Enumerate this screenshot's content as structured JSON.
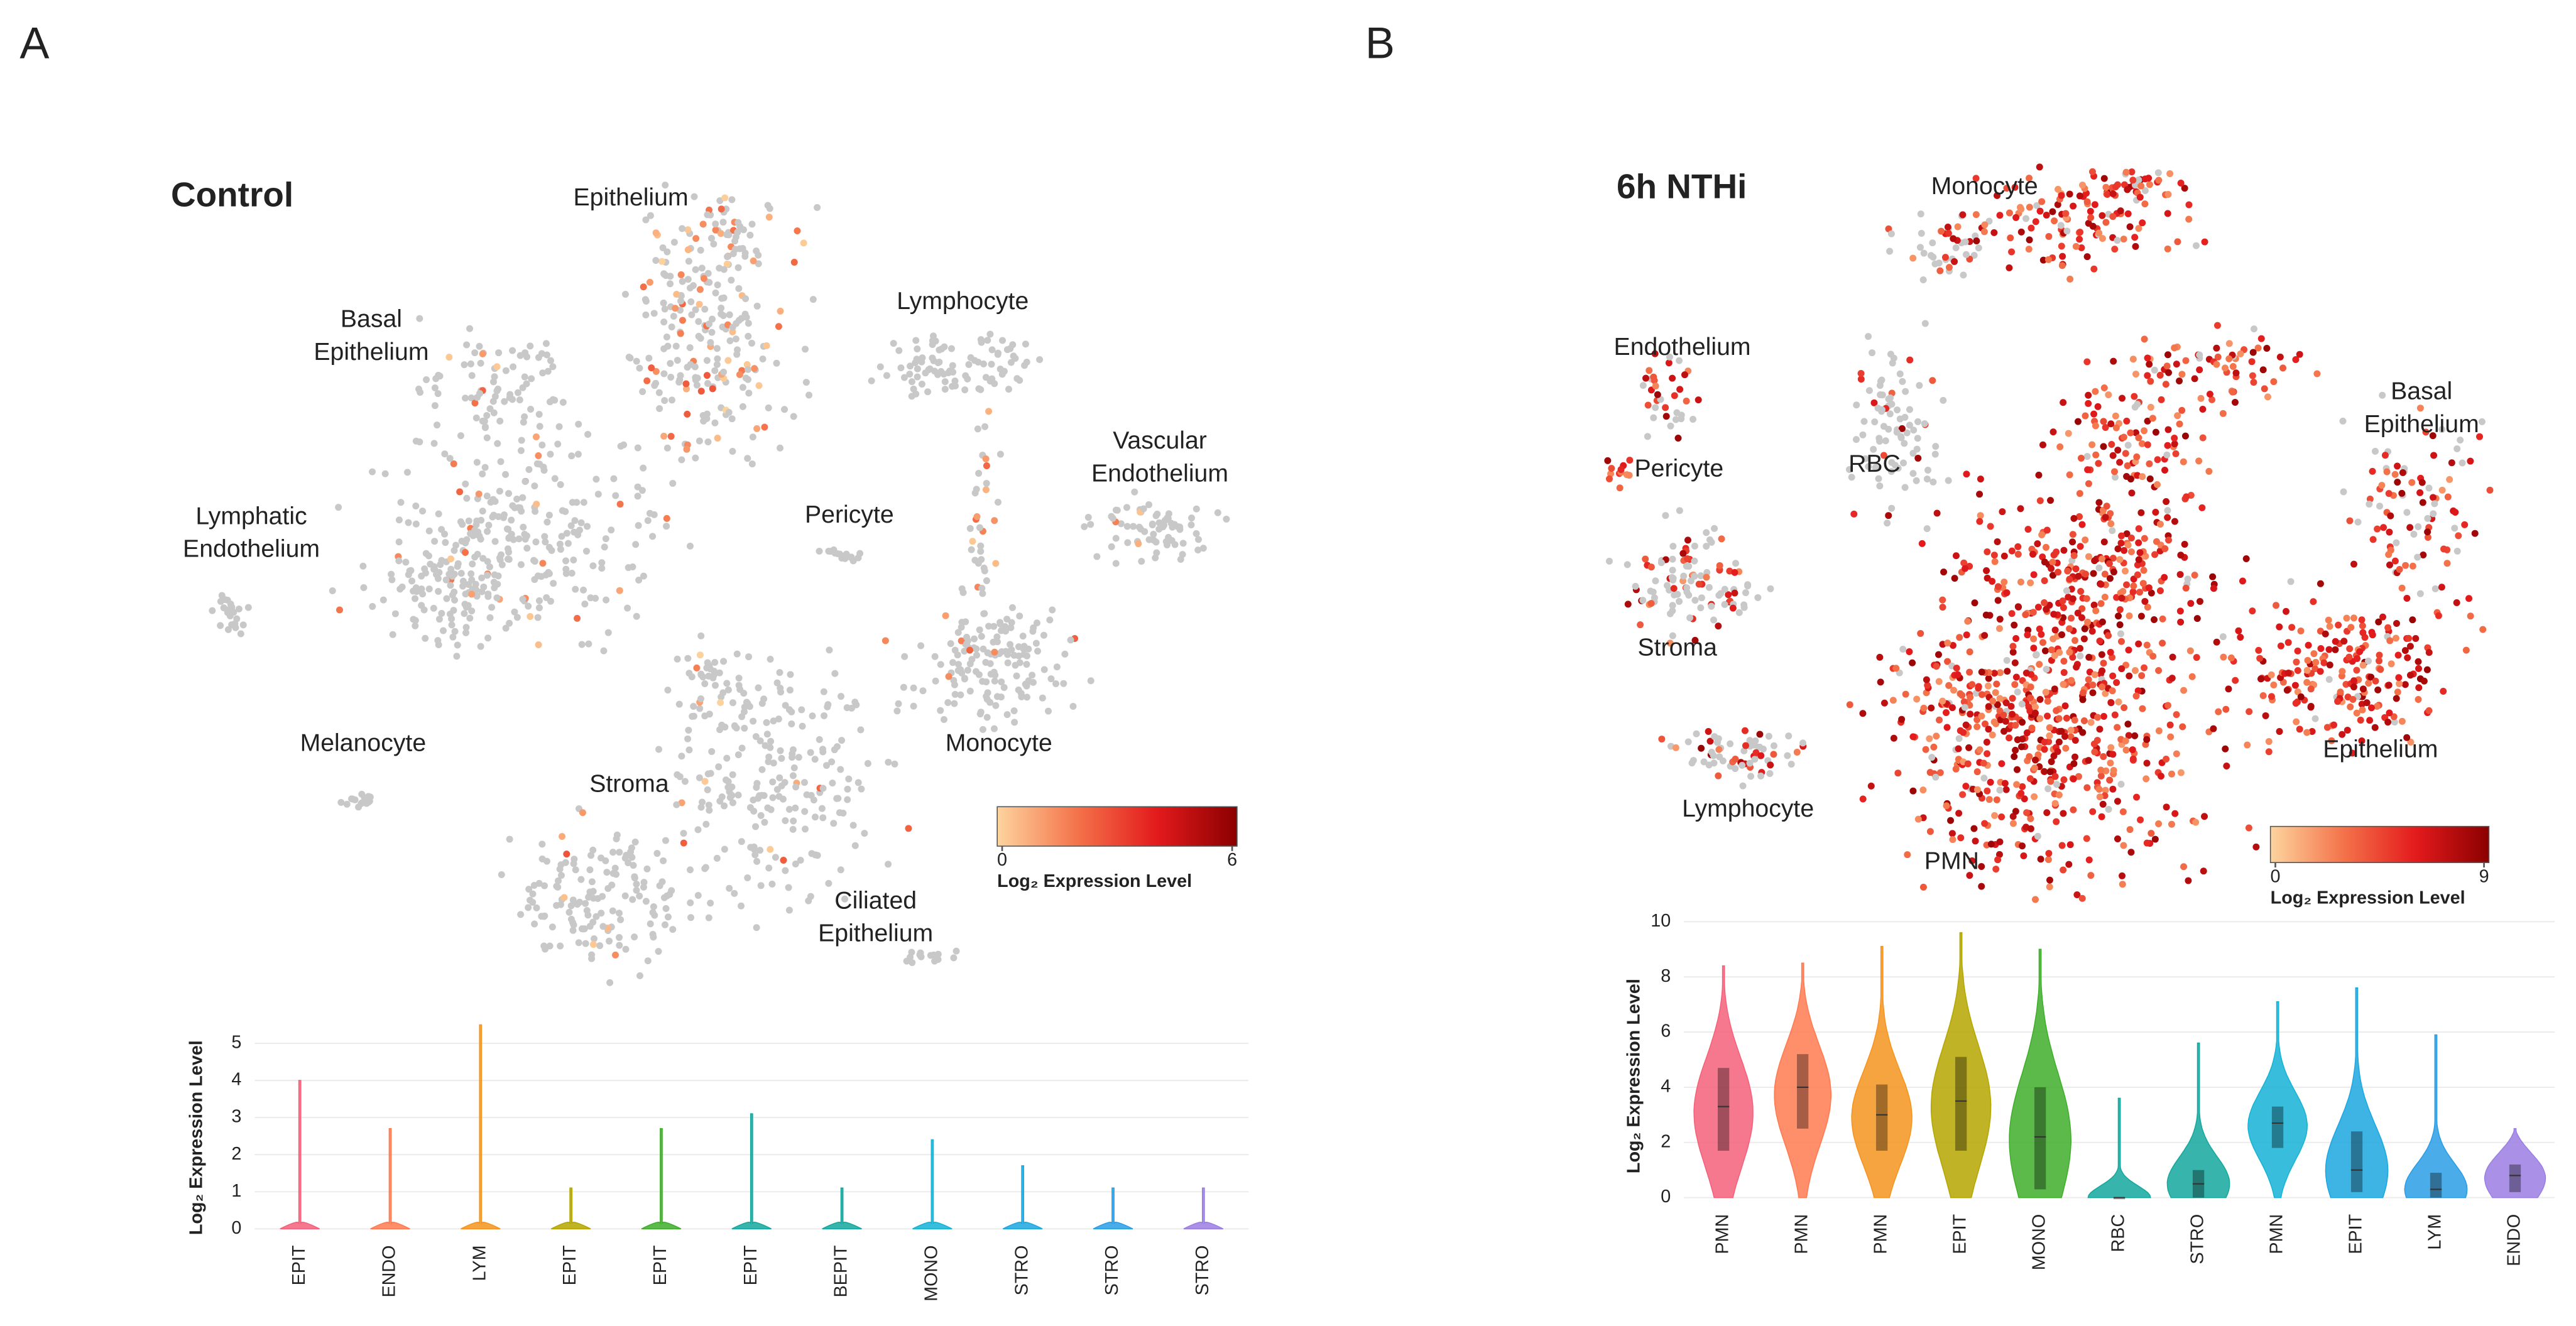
{
  "panels": [
    "A",
    "B"
  ],
  "chart_data": [
    {
      "type": "embedding",
      "title": "Control",
      "clusters": [
        [
          "Epithelium"
        ],
        [
          "Basal",
          "Epithelium"
        ],
        [
          "Lymphatic",
          "Endothelium"
        ],
        [
          "Melanocyte"
        ],
        [
          "Stroma"
        ],
        [
          "Lymphocyte"
        ],
        [
          "Pericyte"
        ],
        [
          "Vascular",
          "Endothelium"
        ],
        [
          "Monocyte"
        ],
        [
          "Ciliated",
          "Epithelium"
        ]
      ],
      "base_color": "#c8c8c8",
      "colorbar": {
        "colors": [
          "#fdd49e",
          "#f4734a",
          "#e31a1c",
          "#8b0000"
        ],
        "ticks": [
          0,
          6
        ],
        "label": "Log₂ Expression Level"
      }
    },
    {
      "type": "violin",
      "ylabel": "Log₂ Expression Level",
      "categories": [
        "EPIT",
        "ENDO",
        "LYM",
        "EPIT",
        "EPIT",
        "EPIT",
        "BEPIT",
        "MONO",
        "STRO",
        "STRO",
        "STRO"
      ],
      "values": [
        4.0,
        2.7,
        5.5,
        1.1,
        2.7,
        3.1,
        1.1,
        2.4,
        1.7,
        1.1,
        1.1
      ],
      "colors": [
        "#f5607a",
        "#ff7a50",
        "#f5941e",
        "#b5a600",
        "#3fae2a",
        "#14a89e",
        "#14a89e",
        "#15b3d6",
        "#1ca7e0",
        "#2a9ee5",
        "#9b7ee3"
      ],
      "ylim": [
        0,
        5.8
      ],
      "yticks": [
        0,
        1,
        2,
        3,
        4,
        5
      ],
      "grid": true
    },
    {
      "type": "embedding",
      "title": "6h NTHi",
      "clusters": [
        [
          "Monocyte"
        ],
        [
          "Endothelium"
        ],
        [
          "Pericyte"
        ],
        [
          "RBC"
        ],
        [
          "Stroma"
        ],
        [
          "Lymphocyte"
        ],
        [
          "PMN"
        ],
        [
          "Basal",
          "Epithelium"
        ],
        [
          "Epithelium"
        ]
      ],
      "base_color": "#c8c8c8",
      "colorbar": {
        "colors": [
          "#fdd49e",
          "#f4734a",
          "#e31a1c",
          "#8b0000"
        ],
        "ticks": [
          0,
          9
        ],
        "label": "Log₂ Expression Level"
      }
    },
    {
      "type": "violin",
      "ylabel": "Log₂ Expression Level",
      "categories": [
        "PMN",
        "PMN",
        "PMN",
        "EPIT",
        "MONO",
        "RBC",
        "STRO",
        "PMN",
        "EPIT",
        "LYM",
        "ENDO"
      ],
      "values": [
        8.4,
        8.5,
        9.1,
        9.6,
        9.0,
        3.6,
        5.6,
        7.1,
        7.6,
        5.9,
        2.5
      ],
      "medians": [
        3.3,
        4.0,
        3.0,
        3.5,
        2.2,
        0,
        0.5,
        2.7,
        1.0,
        0.3,
        0.8
      ],
      "q1": [
        1.7,
        2.5,
        1.7,
        1.7,
        0.3,
        0,
        0,
        1.8,
        0.2,
        0,
        0.2
      ],
      "q3": [
        4.7,
        5.2,
        4.1,
        5.1,
        4.0,
        0,
        1.0,
        3.3,
        2.4,
        0.9,
        1.2
      ],
      "colors": [
        "#f5607a",
        "#ff7a50",
        "#f5941e",
        "#b5a600",
        "#3fae2a",
        "#14a89e",
        "#14a89e",
        "#15b3d6",
        "#1ca7e0",
        "#2a9ee5",
        "#9b7ee3"
      ],
      "ylim": [
        0,
        10
      ],
      "yticks": [
        0,
        2,
        4,
        6,
        8,
        10
      ],
      "grid": true
    }
  ]
}
